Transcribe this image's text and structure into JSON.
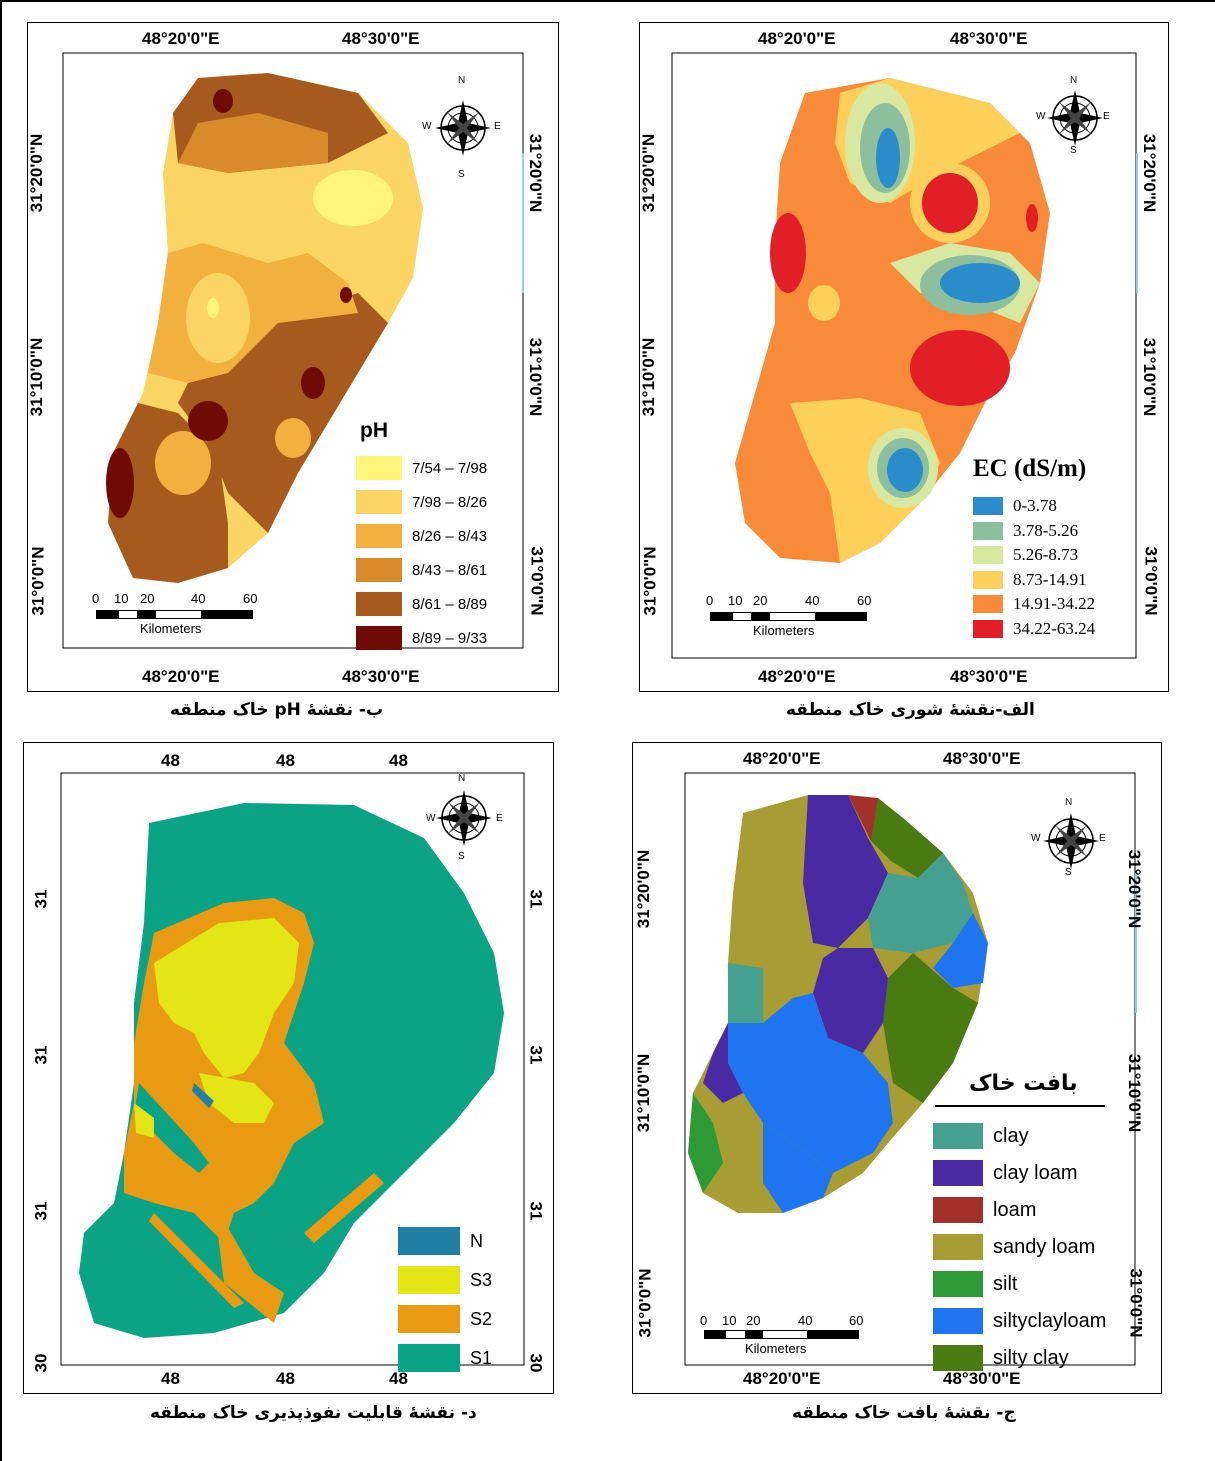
{
  "maps": {
    "salinity": {
      "caption": "الف-نقشهٔ شوری خاک منطقه",
      "lon_top": [
        "48°20'0\"E",
        "48°30'0\"E"
      ],
      "lon_bottom": [
        "48°20'0\"E",
        "48°30'0\"E"
      ],
      "lat_left": [
        "31°20'0\"N",
        "31°10'0\"N",
        "31°0'0\"N"
      ],
      "lat_right": [
        "31°20'0\"N",
        "31°10'0\"N",
        "31°0'0\"N"
      ],
      "legend_title": "EC (dS/m)",
      "legend": [
        {
          "label": "0-3.78",
          "color": "#2b8ccb"
        },
        {
          "label": "3.78-5.26",
          "color": "#8dbf9f"
        },
        {
          "label": "5.26-8.73",
          "color": "#d9e8a0"
        },
        {
          "label": "8.73-14.91",
          "color": "#fcd05a"
        },
        {
          "label": "14.91-34.22",
          "color": "#f88b3a"
        },
        {
          "label": "34.22-63.24",
          "color": "#e21f26"
        }
      ],
      "scale": {
        "ticks": [
          "0",
          "10",
          "20",
          "40",
          "60"
        ],
        "unit": "Kilometers"
      },
      "compass": {
        "n": "N",
        "s": "S",
        "e": "E",
        "w": "W"
      }
    },
    "ph": {
      "caption": "ب- نقشهٔ pH خاک منطقه",
      "lon_top": [
        "48°20'0\"E",
        "48°30'0\"E"
      ],
      "lon_bottom": [
        "48°20'0\"E",
        "48°30'0\"E"
      ],
      "lat_left": [
        "31°20'0\"N",
        "31°10'0\"N",
        "31°0'0\"N"
      ],
      "lat_right": [
        "31°20'0\"N",
        "31°10'0\"N",
        "31°0'0\"N"
      ],
      "legend_title": "pH",
      "legend": [
        {
          "label": "7/54 – 7/98",
          "color": "#fff57a"
        },
        {
          "label": "7/98 – 8/26",
          "color": "#fbd563"
        },
        {
          "label": "8/26 – 8/43",
          "color": "#f2b13f"
        },
        {
          "label": "8/43 – 8/61",
          "color": "#d98a2b"
        },
        {
          "label": "8/61 – 8/89",
          "color": "#a65a1e"
        },
        {
          "label": "8/89 – 9/33",
          "color": "#6e0b05"
        }
      ],
      "scale": {
        "ticks": [
          "0",
          "10",
          "20",
          "40",
          "60"
        ],
        "unit": "Kilometers"
      },
      "compass": {
        "n": "N",
        "s": "S",
        "e": "E",
        "w": "W"
      }
    },
    "texture": {
      "caption": "ج- نقشهٔ بافت خاک منطقه",
      "lon_top": [
        "48°20'0\"E",
        "48°30'0\"E"
      ],
      "lon_bottom": [
        "48°20'0\"E",
        "48°30'0\"E"
      ],
      "lat_left": [
        "31°20'0\"N",
        "31°10'0\"N",
        "31°0'0\"N"
      ],
      "lat_right": [
        "31°20'0\"N",
        "31°10'0\"N",
        "31°0'0\"N"
      ],
      "legend_title": "بافت خاک",
      "legend": [
        {
          "label": "clay",
          "color": "#45a090"
        },
        {
          "label": "clay loam",
          "color": "#4a2aa3"
        },
        {
          "label": "loam",
          "color": "#a3302a"
        },
        {
          "label": "sandy loam",
          "color": "#a89c35"
        },
        {
          "label": "silt",
          "color": "#2d9a35"
        },
        {
          "label": "siltyclayloam",
          "color": "#1f75f0"
        },
        {
          "label": "silty clay",
          "color": "#4a7a12"
        }
      ],
      "scale": {
        "ticks": [
          "0",
          "10",
          "20",
          "40",
          "60"
        ],
        "unit": "Kilometers"
      },
      "compass": {
        "n": "N",
        "s": "S",
        "e": "E",
        "w": "W"
      }
    },
    "permeability": {
      "caption": "د- نقشهٔ قابلیت نفوذپذیری خاک منطقه",
      "lon_top": [
        "48",
        "48",
        "48"
      ],
      "lon_bottom": [
        "48",
        "48",
        "48"
      ],
      "lat_left": [
        "31",
        "31",
        "31",
        "30"
      ],
      "lat_right": [
        "31",
        "31",
        "31",
        "30"
      ],
      "legend": [
        {
          "label": "N",
          "color": "#1f7fa5"
        },
        {
          "label": "S3",
          "color": "#e3e516"
        },
        {
          "label": "S2",
          "color": "#e79a12"
        },
        {
          "label": "S1",
          "color": "#0aa383"
        }
      ],
      "compass": {
        "n": "N",
        "s": "S",
        "e": "E",
        "w": "W"
      }
    }
  }
}
